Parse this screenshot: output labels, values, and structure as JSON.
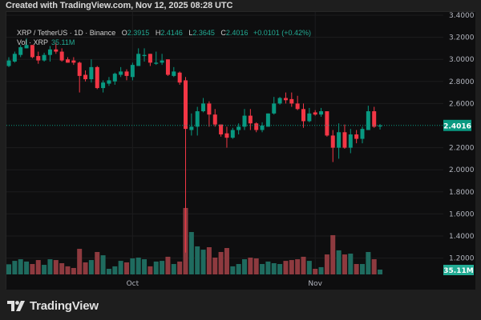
{
  "header": {
    "created_text": "Created with TradingView.com, Nov 12, 2025 08:28 UTC"
  },
  "legend": {
    "symbol": "XRP / TetherUS · 1D · Binance",
    "open_label": "O",
    "open": "2.3915",
    "high_label": "H",
    "high": "2.4146",
    "low_label": "L",
    "low": "2.3645",
    "close_label": "C",
    "close": "2.4016",
    "change": "+0.0101 (+0.42%)",
    "volume_label": "Vol · XRP",
    "volume": "35.11M"
  },
  "footer": {
    "brand": "TradingView"
  },
  "colors": {
    "up": "#089981",
    "down": "#f23645",
    "up_volume": "#1f6b5f",
    "down_volume": "#8e3a3f",
    "background": "#0e0e0f"
  },
  "chart_data": {
    "type": "candlestick",
    "symbol": "XRP/USDT",
    "interval": "1D",
    "grid": true,
    "x_tick_labels": [
      {
        "label": "Oct",
        "date": "2025-10-01"
      },
      {
        "label": "Nov",
        "date": "2025-11-01"
      }
    ],
    "y_tick_labels": [
      "3.4000",
      "3.2000",
      "3.0000",
      "2.8000",
      "2.6000",
      "2.2000",
      "2.0000",
      "1.8000",
      "1.6000",
      "1.4000",
      "1.2000"
    ],
    "y_ticks": [
      3.4,
      3.2,
      3.0,
      2.8,
      2.6,
      2.2,
      2.0,
      1.8,
      1.6,
      1.4,
      1.2
    ],
    "ylim": [
      1.1,
      3.4
    ],
    "last_price": 2.4016,
    "last_price_label": "2.4016",
    "last_volume_label": "35.11M",
    "first_date": "2025-09-10",
    "last_date": "2025-11-12",
    "ohlc": [
      [
        2.94,
        3.02,
        2.93,
        2.99
      ],
      [
        2.98,
        3.07,
        2.97,
        3.05
      ],
      [
        3.04,
        3.13,
        3.02,
        3.11
      ],
      [
        3.1,
        3.19,
        3.1,
        3.13
      ],
      [
        3.13,
        3.13,
        3.01,
        3.02
      ],
      [
        3.03,
        3.07,
        2.96,
        2.99
      ],
      [
        2.99,
        3.06,
        2.98,
        3.04
      ],
      [
        3.04,
        3.12,
        2.98,
        3.09
      ],
      [
        3.09,
        3.15,
        3.05,
        3.07
      ],
      [
        3.07,
        3.1,
        2.98,
        2.99
      ],
      [
        3.0,
        3.02,
        2.97,
        2.97
      ],
      [
        2.99,
        3.02,
        2.95,
        2.97
      ],
      [
        2.97,
        2.98,
        2.7,
        2.85
      ],
      [
        2.86,
        2.9,
        2.8,
        2.82
      ],
      [
        2.82,
        3.0,
        2.79,
        2.93
      ],
      [
        2.93,
        2.94,
        2.73,
        2.74
      ],
      [
        2.74,
        2.81,
        2.7,
        2.79
      ],
      [
        2.78,
        2.84,
        2.76,
        2.81
      ],
      [
        2.8,
        2.88,
        2.77,
        2.87
      ],
      [
        2.86,
        2.93,
        2.84,
        2.89
      ],
      [
        2.89,
        2.91,
        2.81,
        2.85
      ],
      [
        2.84,
        2.97,
        2.81,
        2.95
      ],
      [
        2.94,
        3.1,
        2.94,
        3.05
      ],
      [
        3.03,
        3.1,
        2.98,
        3.04
      ],
      [
        3.05,
        3.05,
        2.94,
        2.97
      ],
      [
        2.96,
        3.07,
        2.95,
        2.97
      ],
      [
        2.97,
        3.05,
        2.95,
        2.99
      ],
      [
        3.0,
        3.0,
        2.85,
        2.86
      ],
      [
        2.85,
        2.93,
        2.84,
        2.89
      ],
      [
        2.88,
        2.89,
        2.77,
        2.79
      ],
      [
        2.81,
        2.84,
        1.25,
        2.37
      ],
      [
        2.36,
        2.51,
        2.31,
        2.39
      ],
      [
        2.39,
        2.57,
        2.31,
        2.53
      ],
      [
        2.53,
        2.65,
        2.52,
        2.6
      ],
      [
        2.6,
        2.62,
        2.39,
        2.5
      ],
      [
        2.5,
        2.55,
        2.39,
        2.41
      ],
      [
        2.41,
        2.41,
        2.3,
        2.32
      ],
      [
        2.33,
        2.39,
        2.2,
        2.29
      ],
      [
        2.29,
        2.38,
        2.28,
        2.36
      ],
      [
        2.36,
        2.42,
        2.32,
        2.39
      ],
      [
        2.39,
        2.55,
        2.36,
        2.49
      ],
      [
        2.49,
        2.55,
        2.36,
        2.42
      ],
      [
        2.42,
        2.43,
        2.34,
        2.36
      ],
      [
        2.36,
        2.43,
        2.34,
        2.4
      ],
      [
        2.39,
        2.51,
        2.39,
        2.51
      ],
      [
        2.51,
        2.66,
        2.5,
        2.6
      ],
      [
        2.6,
        2.66,
        2.59,
        2.65
      ],
      [
        2.65,
        2.7,
        2.6,
        2.63
      ],
      [
        2.64,
        2.7,
        2.57,
        2.6
      ],
      [
        2.6,
        2.67,
        2.54,
        2.55
      ],
      [
        2.55,
        2.6,
        2.38,
        2.44
      ],
      [
        2.44,
        2.56,
        2.43,
        2.51
      ],
      [
        2.52,
        2.54,
        2.49,
        2.5
      ],
      [
        2.5,
        2.56,
        2.48,
        2.53
      ],
      [
        2.53,
        2.53,
        2.3,
        2.31
      ],
      [
        2.31,
        2.36,
        2.07,
        2.2
      ],
      [
        2.2,
        2.42,
        2.1,
        2.34
      ],
      [
        2.34,
        2.41,
        2.19,
        2.2
      ],
      [
        2.2,
        2.37,
        2.15,
        2.32
      ],
      [
        2.32,
        2.36,
        2.24,
        2.28
      ],
      [
        2.28,
        2.39,
        2.24,
        2.37
      ],
      [
        2.36,
        2.58,
        2.36,
        2.53
      ],
      [
        2.53,
        2.57,
        2.38,
        2.39
      ],
      [
        2.3915,
        2.4146,
        2.3645,
        2.4016
      ]
    ],
    "volume_millions": [
      74,
      99,
      111,
      94,
      76,
      105,
      70,
      111,
      105,
      82,
      59,
      47,
      187,
      88,
      105,
      164,
      140,
      41,
      59,
      99,
      88,
      117,
      123,
      111,
      59,
      94,
      99,
      129,
      76,
      94,
      486,
      310,
      205,
      181,
      199,
      123,
      164,
      193,
      59,
      76,
      111,
      123,
      117,
      76,
      94,
      82,
      76,
      99,
      105,
      111,
      129,
      99,
      41,
      53,
      146,
      287,
      176,
      146,
      152,
      76,
      76,
      164,
      111,
      35.11
    ]
  }
}
